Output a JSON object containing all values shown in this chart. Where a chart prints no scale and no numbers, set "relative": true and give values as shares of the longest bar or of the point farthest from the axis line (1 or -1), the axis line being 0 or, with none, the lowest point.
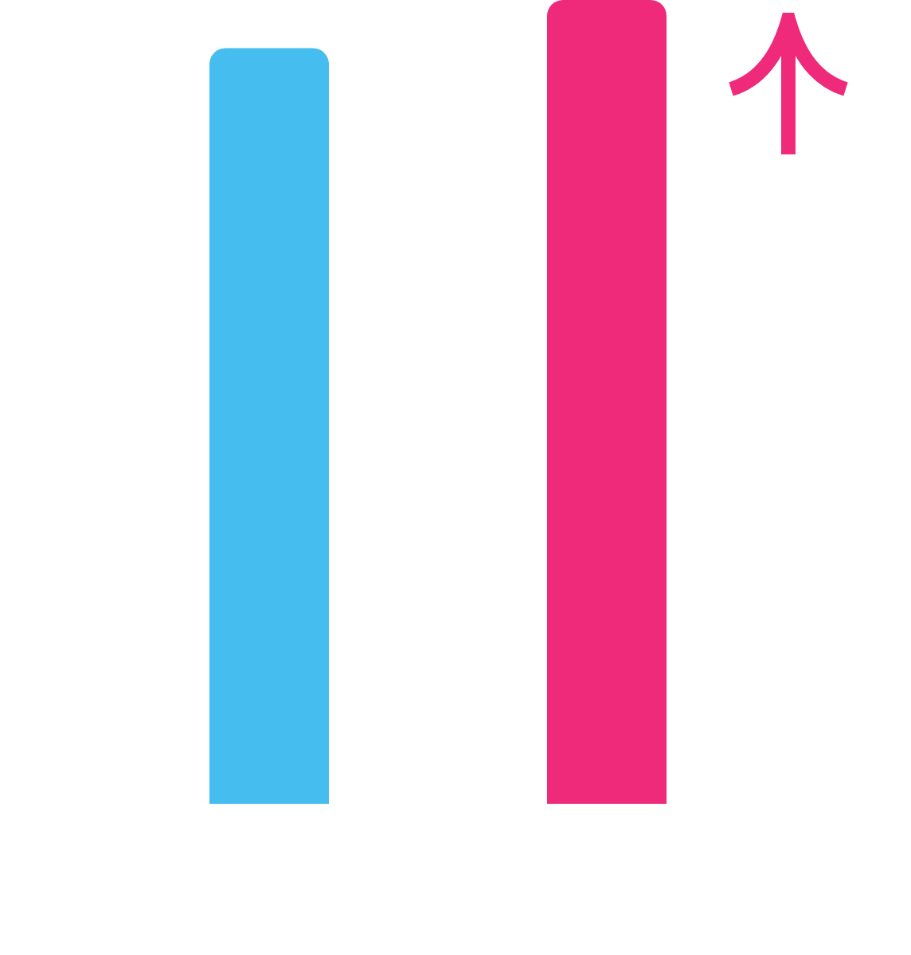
{
  "chart_data": {
    "type": "bar",
    "relative": true,
    "categories": [
      null,
      null
    ],
    "values": [
      0.94,
      1
    ],
    "colors": [
      "#45bdee",
      "#ef2a7a"
    ]
  }
}
